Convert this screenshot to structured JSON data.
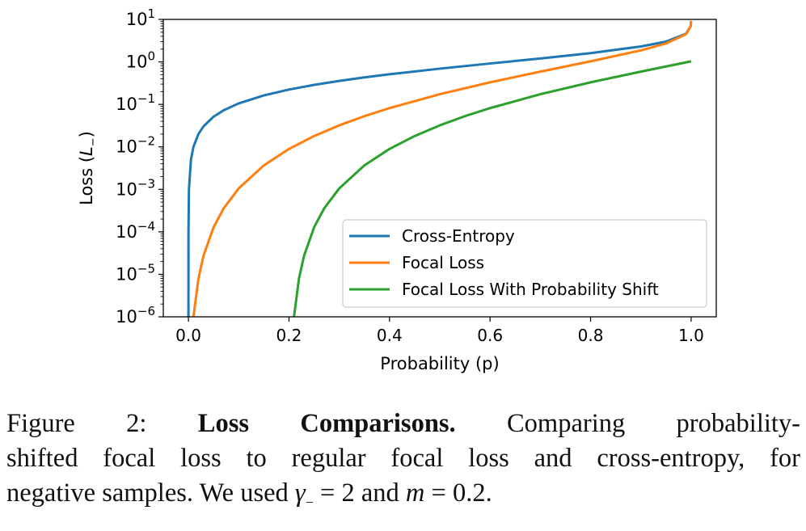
{
  "chart_data": {
    "type": "line",
    "xlabel": "Probability (p)",
    "ylabel": "Loss (L₋)",
    "ylabel_parts": {
      "text": "Loss (",
      "var": "L",
      "sub": "−",
      "close": ")"
    },
    "xlim": [
      -0.05,
      1.05
    ],
    "ylim": [
      1e-06,
      10
    ],
    "yscale": "log",
    "grid": false,
    "legend_position": "lower-right",
    "x_ticks": [
      "0.0",
      "0.2",
      "0.4",
      "0.6",
      "0.8",
      "1.0"
    ],
    "y_ticks": [
      {
        "base": "10",
        "exp": "1"
      },
      {
        "base": "10",
        "exp": "0"
      },
      {
        "base": "10",
        "exp": "−1"
      },
      {
        "base": "10",
        "exp": "−2"
      },
      {
        "base": "10",
        "exp": "−3"
      },
      {
        "base": "10",
        "exp": "−4"
      },
      {
        "base": "10",
        "exp": "−5"
      },
      {
        "base": "10",
        "exp": "−6"
      }
    ],
    "series": [
      {
        "name": "Cross-Entropy",
        "color": "#1f77b4",
        "x": [
          1e-06,
          0.0001,
          0.001,
          0.005,
          0.01,
          0.02,
          0.03,
          0.05,
          0.07,
          0.1,
          0.15,
          0.2,
          0.25,
          0.3,
          0.35,
          0.4,
          0.5,
          0.6,
          0.7,
          0.8,
          0.9,
          0.95,
          0.99,
          0.999,
          0.9999
        ],
        "y": [
          1e-06,
          0.0001,
          0.0010005,
          0.005013,
          0.01005,
          0.0202,
          0.03046,
          0.0513,
          0.07257,
          0.1054,
          0.1625,
          0.2231,
          0.2877,
          0.3567,
          0.4308,
          0.5108,
          0.6931,
          0.9163,
          1.204,
          1.609,
          2.303,
          2.996,
          4.605,
          6.908,
          9.21
        ]
      },
      {
        "name": "Focal Loss",
        "color": "#ff7f0e",
        "x": [
          0.01,
          0.02,
          0.03,
          0.05,
          0.07,
          0.1,
          0.15,
          0.2,
          0.25,
          0.3,
          0.35,
          0.4,
          0.5,
          0.6,
          0.7,
          0.8,
          0.9,
          0.95,
          0.99,
          0.999,
          0.9999
        ],
        "y": [
          1.005e-06,
          8.08e-06,
          2.74e-05,
          0.000128,
          0.0003556,
          0.001054,
          0.00366,
          0.00893,
          0.01798,
          0.0321,
          0.0528,
          0.0817,
          0.1733,
          0.3299,
          0.59,
          1.03,
          1.865,
          2.704,
          4.513,
          6.894,
          9.208
        ]
      },
      {
        "name": "Focal Loss With Probability Shift",
        "color": "#2ca02c",
        "x": [
          0.21,
          0.22,
          0.23,
          0.25,
          0.27,
          0.3,
          0.35,
          0.4,
          0.45,
          0.5,
          0.55,
          0.6,
          0.7,
          0.8,
          0.9,
          1.0
        ],
        "y": [
          1.005e-06,
          8.08e-06,
          2.74e-05,
          0.000128,
          0.0003556,
          0.001054,
          0.00366,
          0.00893,
          0.01798,
          0.0321,
          0.0528,
          0.0817,
          0.1733,
          0.3299,
          0.59,
          1.03
        ]
      }
    ]
  },
  "caption": {
    "prefix": "Figure 2: ",
    "bold": "Loss Comparisons.",
    "line1_rest": " Comparing probability-",
    "line2": "shifted focal loss to regular focal loss and cross-entropy, for",
    "line3_a": "negative samples. We used ",
    "gamma": "γ",
    "gamma_sub": "−",
    "line3_b": " = 2 and ",
    "m": "m",
    "line3_c": " = 0.2."
  }
}
